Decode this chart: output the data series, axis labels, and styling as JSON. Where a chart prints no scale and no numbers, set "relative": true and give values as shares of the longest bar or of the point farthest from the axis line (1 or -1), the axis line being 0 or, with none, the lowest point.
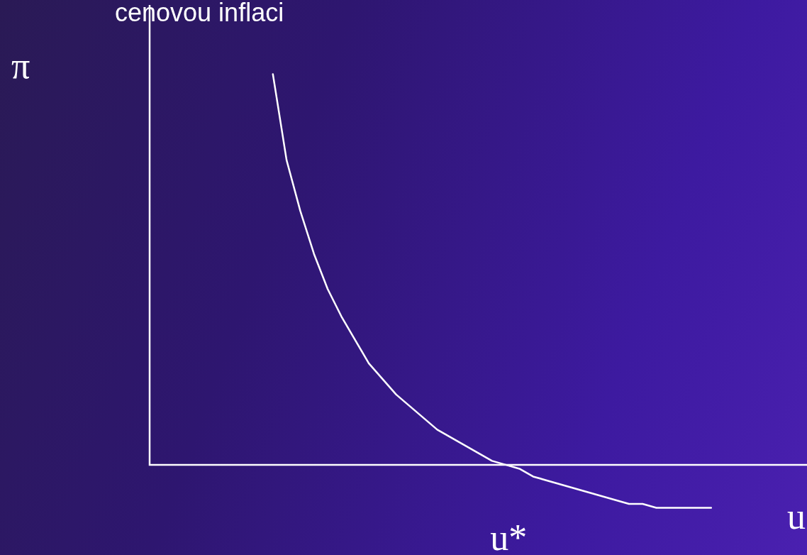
{
  "chart_data": {
    "type": "line",
    "title": "cenovou inflaci",
    "xlabel": "u",
    "ylabel": "π",
    "annotations": [
      "u*"
    ],
    "relative": true,
    "color": "#ffffff",
    "categories": [
      null,
      null,
      null,
      null,
      null,
      null,
      null,
      null,
      null,
      null,
      null,
      null,
      null,
      null,
      null,
      null,
      null,
      null,
      null,
      null,
      null,
      null,
      null,
      null,
      null,
      null,
      null,
      null,
      null,
      null,
      null,
      null,
      null,
      null,
      null,
      null,
      null,
      null,
      null,
      null,
      null,
      null,
      null,
      null,
      null,
      null,
      null,
      null,
      null
    ],
    "values": [
      null,
      null,
      null,
      null,
      null,
      null,
      null,
      null,
      null,
      1,
      0.78,
      0.65,
      0.54,
      0.45,
      0.38,
      0.32,
      0.26,
      0.22,
      0.18,
      0.15,
      0.12,
      0.09,
      0.07,
      0.05,
      0.03,
      0.01,
      0,
      -0.01,
      -0.03,
      -0.04,
      -0.05,
      -0.06,
      -0.07,
      -0.08,
      -0.09,
      -0.1,
      -0.1,
      -0.11,
      -0.11,
      -0.11,
      -0.11,
      -0.11,
      null,
      null,
      null,
      null,
      null,
      null,
      null
    ]
  }
}
